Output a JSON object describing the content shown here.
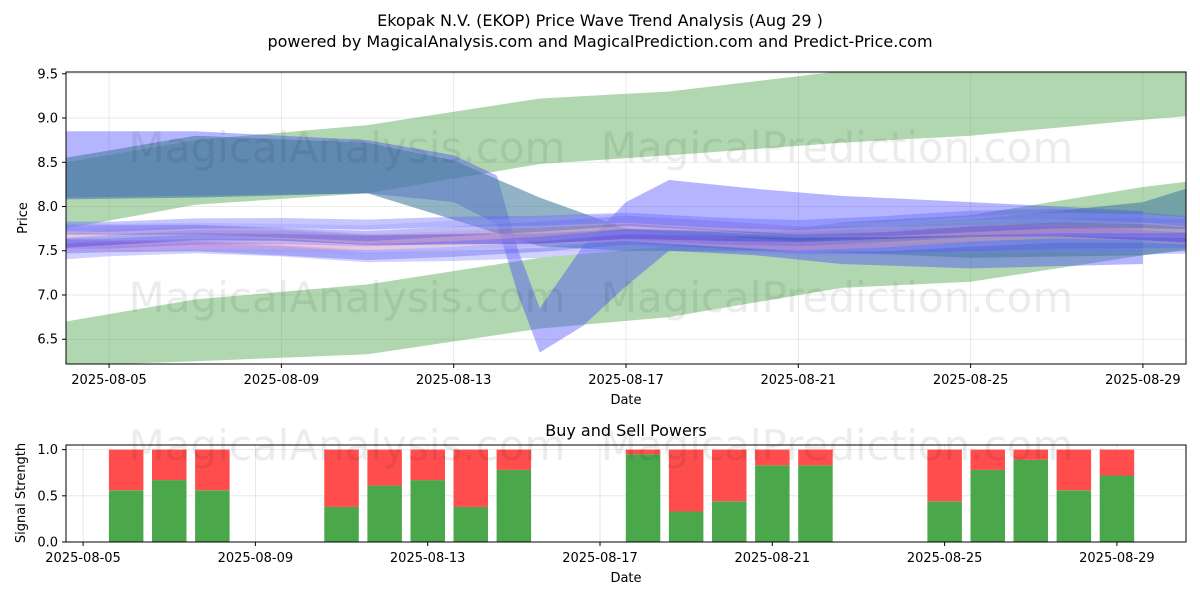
{
  "titles": {
    "main": "Ekopak N.V. (EKOP) Price Wave Trend Analysis (Aug 29 )",
    "sub": "powered by MagicalAnalysis.com and MagicalPrediction.com and Predict-Price.com"
  },
  "watermarks": [
    "MagicalAnalysis.com",
    "MagicalPrediction.com"
  ],
  "colors": {
    "green_band": "#5aac5a",
    "blue_band": "#3a3aff",
    "buy": "#4aa84a",
    "sell": "#ff4d4d"
  },
  "chart_data": [
    {
      "type": "area",
      "title": "",
      "xlabel": "Date",
      "ylabel": "Price",
      "xlim": [
        "2025-08-04",
        "2025-08-30"
      ],
      "ylim": [
        6.22,
        9.52
      ],
      "y_ticks": [
        6.5,
        7.0,
        7.5,
        8.0,
        8.5,
        9.0,
        9.5
      ],
      "x_ticks": [
        "2025-08-05",
        "2025-08-09",
        "2025-08-13",
        "2025-08-17",
        "2025-08-21",
        "2025-08-25",
        "2025-08-29"
      ],
      "grid": true,
      "bands": [
        {
          "name": "green-upper-band",
          "color": "green",
          "x": [
            "2025-08-04",
            "2025-08-07",
            "2025-08-11",
            "2025-08-15",
            "2025-08-18",
            "2025-08-22",
            "2025-08-25",
            "2025-08-29",
            "2025-08-30"
          ],
          "upper": [
            8.5,
            8.75,
            8.92,
            9.22,
            9.3,
            9.53,
            9.55,
            9.6,
            9.6
          ],
          "lower": [
            7.75,
            8.02,
            8.15,
            8.48,
            8.58,
            8.72,
            8.8,
            8.98,
            9.02
          ]
        },
        {
          "name": "green-lower-band",
          "color": "green",
          "x": [
            "2025-08-04",
            "2025-08-07",
            "2025-08-11",
            "2025-08-15",
            "2025-08-18",
            "2025-08-22",
            "2025-08-25",
            "2025-08-29",
            "2025-08-30"
          ],
          "upper": [
            6.7,
            6.95,
            7.12,
            7.42,
            7.55,
            7.82,
            7.9,
            8.22,
            8.28
          ],
          "lower": [
            6.2,
            6.25,
            6.33,
            6.62,
            6.75,
            7.08,
            7.15,
            7.45,
            7.52
          ]
        },
        {
          "name": "blue-wave-band",
          "color": "blue",
          "x": [
            "2025-08-04",
            "2025-08-07",
            "2025-08-11",
            "2025-08-13",
            "2025-08-14",
            "2025-08-14.5",
            "2025-08-15",
            "2025-08-16",
            "2025-08-17",
            "2025-08-18",
            "2025-08-20",
            "2025-08-22",
            "2025-08-25",
            "2025-08-29"
          ],
          "upper": [
            8.85,
            8.85,
            8.75,
            8.58,
            8.35,
            7.5,
            6.85,
            7.55,
            8.05,
            8.3,
            8.2,
            8.12,
            8.05,
            7.95
          ],
          "lower": [
            8.1,
            8.12,
            8.15,
            8.05,
            7.8,
            7.0,
            6.35,
            6.65,
            7.1,
            7.5,
            7.45,
            7.35,
            7.3,
            7.35
          ]
        },
        {
          "name": "dark-wave-band",
          "color": "dark",
          "x": [
            "2025-08-04",
            "2025-08-07",
            "2025-08-11",
            "2025-08-13",
            "2025-08-15",
            "2025-08-17",
            "2025-08-21",
            "2025-08-25",
            "2025-08-29",
            "2025-08-30"
          ],
          "upper": [
            8.55,
            8.8,
            8.72,
            8.52,
            8.1,
            7.75,
            7.7,
            7.85,
            8.05,
            8.2
          ],
          "lower": [
            8.08,
            8.1,
            8.15,
            7.85,
            7.55,
            7.5,
            7.5,
            7.42,
            7.45,
            7.5
          ]
        }
      ],
      "wave_lines": {
        "x": [
          "2025-08-04",
          "2025-08-05",
          "2025-08-07",
          "2025-08-09",
          "2025-08-11",
          "2025-08-13",
          "2025-08-15",
          "2025-08-17",
          "2025-08-19",
          "2025-08-21",
          "2025-08-23",
          "2025-08-25",
          "2025-08-27",
          "2025-08-29",
          "2025-08-30"
        ],
        "center": [
          7.62,
          7.63,
          7.66,
          7.64,
          7.6,
          7.63,
          7.66,
          7.72,
          7.68,
          7.64,
          7.66,
          7.7,
          7.72,
          7.7,
          7.68
        ]
      }
    },
    {
      "type": "bar",
      "title": "Buy and Sell Powers",
      "xlabel": "Date",
      "ylabel": "Signal Strength",
      "xlim": [
        "2025-08-04",
        "2025-08-30"
      ],
      "ylim": [
        0,
        1.05
      ],
      "y_ticks": [
        0.0,
        0.5,
        1.0
      ],
      "x_ticks": [
        "2025-08-05",
        "2025-08-09",
        "2025-08-13",
        "2025-08-17",
        "2025-08-21",
        "2025-08-25",
        "2025-08-29"
      ],
      "grid": true,
      "categories": [
        "2025-08-06",
        "2025-08-07",
        "2025-08-08",
        "2025-08-11",
        "2025-08-12",
        "2025-08-13",
        "2025-08-14",
        "2025-08-15",
        "2025-08-18",
        "2025-08-19",
        "2025-08-20",
        "2025-08-21",
        "2025-08-22",
        "2025-08-25",
        "2025-08-26",
        "2025-08-27",
        "2025-08-28",
        "2025-08-29"
      ],
      "series": [
        {
          "values": [
            0.56,
            0.67,
            0.56,
            0.38,
            0.61,
            0.67,
            0.38,
            0.78,
            0.95,
            0.33,
            0.44,
            0.83,
            0.83,
            0.44,
            0.78,
            0.89,
            0.56,
            0.72
          ]
        },
        {
          "values": [
            0.44,
            0.33,
            0.44,
            0.62,
            0.39,
            0.33,
            0.62,
            0.22,
            0.05,
            0.67,
            0.56,
            0.17,
            0.17,
            0.56,
            0.22,
            0.11,
            0.44,
            0.28
          ]
        }
      ]
    }
  ]
}
